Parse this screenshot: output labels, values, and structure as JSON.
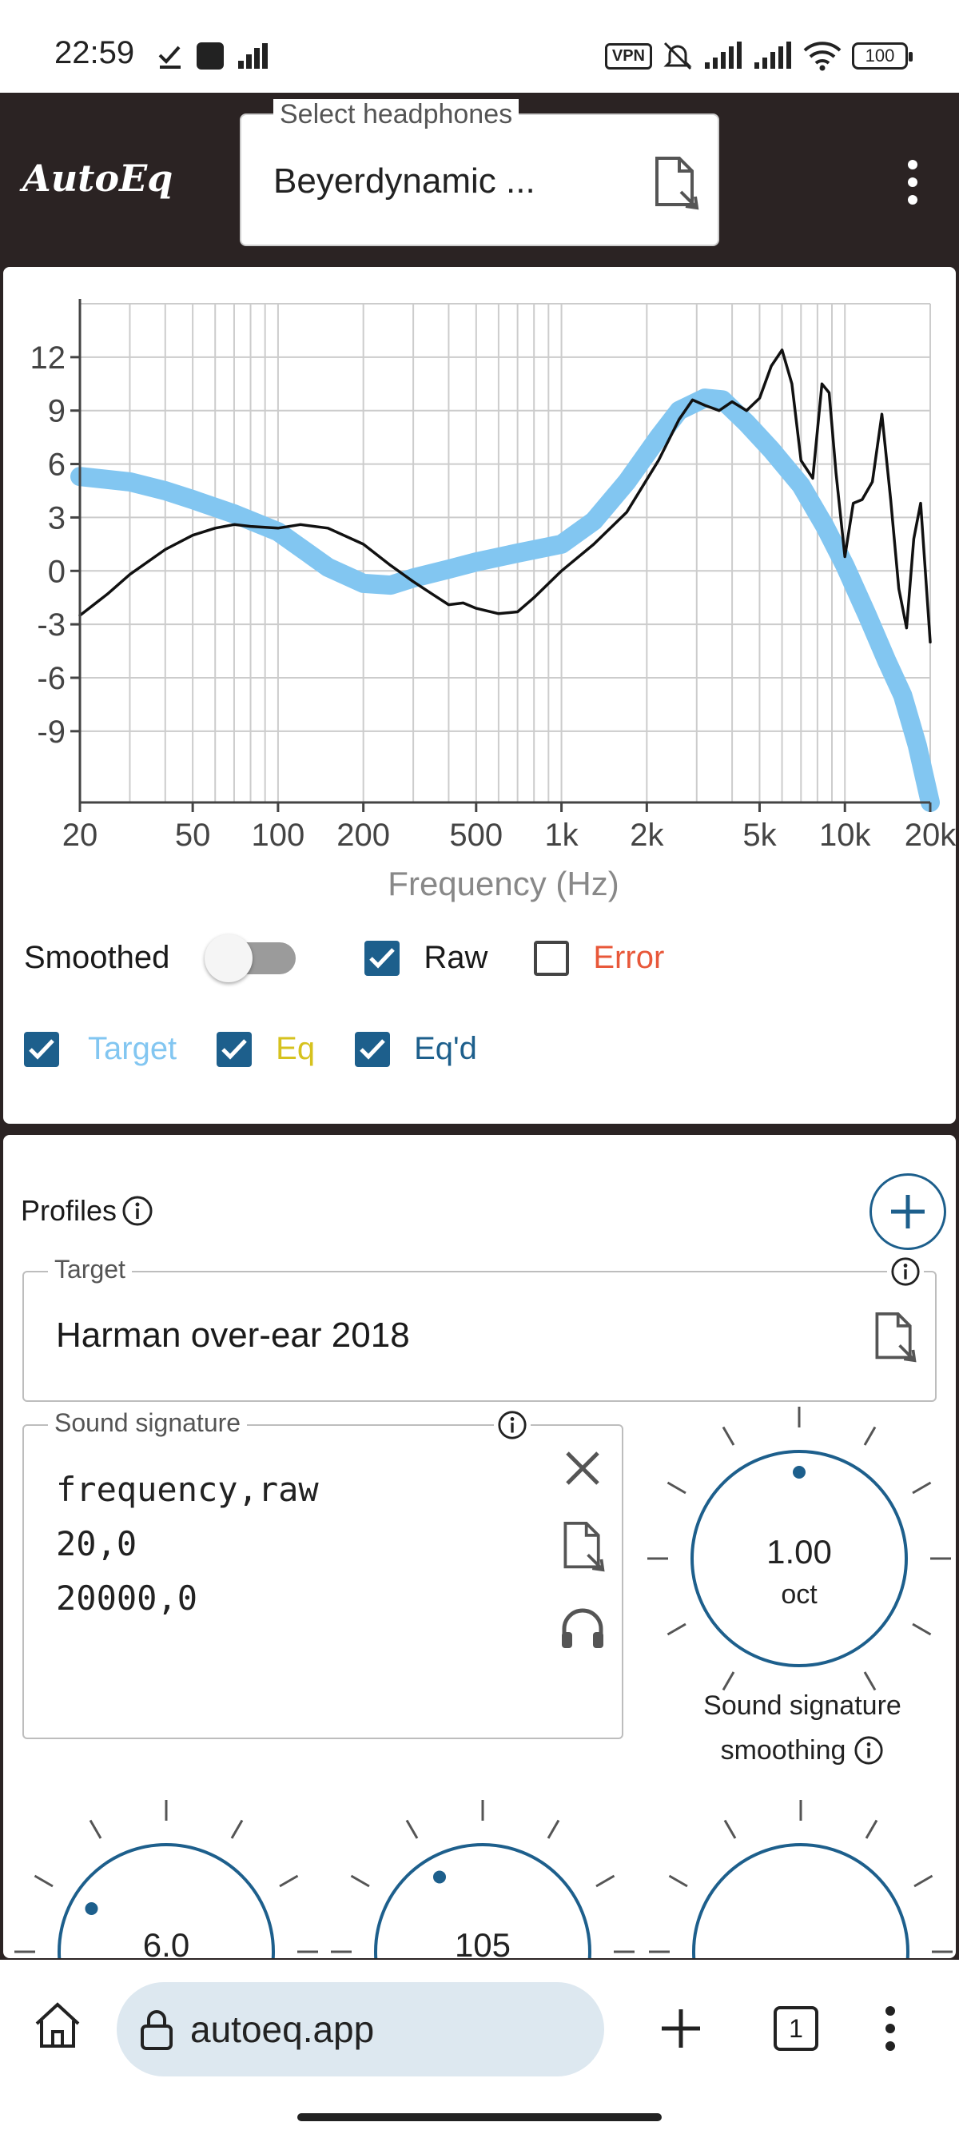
{
  "status_bar": {
    "time": "22:59",
    "vpn": "VPN",
    "battery": "100"
  },
  "header": {
    "logo": "AutoEq",
    "select_label": "Select headphones",
    "select_value": "Beyerdynamic ..."
  },
  "chart_data": {
    "type": "line",
    "xlabel": "Frequency (Hz)",
    "xscale": "log",
    "xlim": [
      20,
      20000
    ],
    "ylim": [
      -13,
      15
    ],
    "x_ticks": [
      20,
      50,
      100,
      200,
      500,
      1000,
      2000,
      5000,
      10000,
      20000
    ],
    "x_tick_labels": [
      "20",
      "50",
      "100",
      "200",
      "500",
      "1k",
      "2k",
      "5k",
      "10k",
      "20k"
    ],
    "y_ticks": [
      -9,
      -6,
      -3,
      0,
      3,
      6,
      9,
      12
    ],
    "y_tick_labels": [
      "-9",
      "-6",
      "-3",
      "0",
      "3",
      "6",
      "9",
      "12"
    ],
    "grid": true,
    "series": [
      {
        "name": "Target",
        "color": "#82c6f1",
        "x": [
          20,
          30,
          40,
          50,
          70,
          100,
          150,
          200,
          250,
          300,
          400,
          500,
          700,
          1000,
          1300,
          1700,
          2200,
          2600,
          3200,
          3700,
          4500,
          5500,
          7000,
          8500,
          10000,
          12000,
          14000,
          16000,
          18000,
          20000
        ],
        "y": [
          5.3,
          5.0,
          4.5,
          4.0,
          3.2,
          2.2,
          0.2,
          -0.7,
          -0.8,
          -0.4,
          0.1,
          0.5,
          1.0,
          1.5,
          2.8,
          5.0,
          7.5,
          9.0,
          9.7,
          9.6,
          8.3,
          6.8,
          4.8,
          2.5,
          0.3,
          -2.5,
          -5.0,
          -7.0,
          -9.8,
          -13.0
        ]
      },
      {
        "name": "Raw",
        "color": "#111111",
        "x": [
          20,
          25,
          30,
          40,
          50,
          60,
          70,
          80,
          100,
          120,
          150,
          200,
          250,
          300,
          350,
          400,
          450,
          500,
          600,
          700,
          800,
          1000,
          1300,
          1700,
          2200,
          2600,
          2900,
          3200,
          3600,
          4000,
          4500,
          5000,
          5500,
          6000,
          6500,
          7000,
          7700,
          8300,
          8800,
          9300,
          10000,
          10700,
          11500,
          12500,
          13500,
          14500,
          15500,
          16500,
          17500,
          18500,
          20000
        ],
        "y": [
          -2.5,
          -1.3,
          -0.2,
          1.2,
          2.0,
          2.4,
          2.6,
          2.5,
          2.4,
          2.6,
          2.4,
          1.5,
          0.3,
          -0.6,
          -1.3,
          -1.9,
          -1.8,
          -2.1,
          -2.4,
          -2.3,
          -1.5,
          0.0,
          1.5,
          3.3,
          6.2,
          8.5,
          9.6,
          9.3,
          9.0,
          9.5,
          9.0,
          9.7,
          11.5,
          12.4,
          10.5,
          6.2,
          5.2,
          10.5,
          10.0,
          5.5,
          0.8,
          3.8,
          4.0,
          5.0,
          8.8,
          4.0,
          -1.0,
          -3.2,
          1.8,
          3.8,
          -4.0
        ]
      }
    ]
  },
  "controls": {
    "smoothed": "Smoothed",
    "raw": "Raw",
    "error": "Error",
    "target": "Target",
    "eq": "Eq",
    "eqd": "Eq'd"
  },
  "colors": {
    "target": "#82c6f1",
    "eq": "#d6c21e",
    "eqd": "#1d5f8c",
    "error": "#e8583a",
    "accent": "#1d5f8c",
    "header_bg": "#2b2323"
  },
  "profiles": {
    "title": "Profiles",
    "target_label": "Target",
    "target_value": "Harman over-ear 2018",
    "signature_label": "Sound signature",
    "signature_text": "frequency,raw\n20,0\n20000,0",
    "smoothing_value": "1.00",
    "smoothing_unit": "oct",
    "smoothing_label_line1": "Sound signature",
    "smoothing_label_line2": "smoothing",
    "dial2_value": "6.0",
    "dial3_value": "105"
  },
  "browser": {
    "url": "autoeq.app",
    "tab_count": "1"
  }
}
